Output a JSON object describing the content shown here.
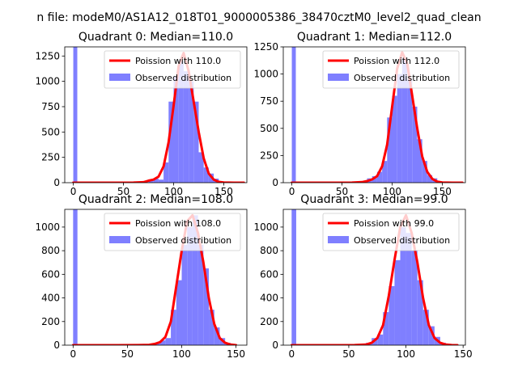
{
  "figure": {
    "suptitle": "n file: modeM0/AS1A12_018T01_9000005386_38470cztM0_level2_quad_clean"
  },
  "colors": {
    "hist": "#7f7fff",
    "poisson": "#ff0000",
    "axes": "#000000",
    "background": "#ffffff"
  },
  "chart_data": [
    {
      "type": "bar",
      "title": "Quadrant 0: Median=110.0",
      "legend_position": "upper-right",
      "xlim": [
        -8.5,
        173
      ],
      "ylim": [
        0,
        1340
      ],
      "xticks": [
        0,
        50,
        100,
        150
      ],
      "yticks": [
        0,
        250,
        500,
        750,
        1000,
        1250
      ],
      "series": [
        {
          "name": "Poission with 110.0",
          "kind": "line",
          "x": [
            0,
            40,
            60,
            70,
            75,
            80,
            85,
            90,
            95,
            100,
            105,
            110,
            115,
            120,
            125,
            130,
            135,
            140,
            145,
            150,
            160,
            170
          ],
          "y": [
            0,
            0,
            1,
            5,
            20,
            30,
            60,
            160,
            400,
            760,
            1150,
            1280,
            1100,
            800,
            500,
            240,
            90,
            30,
            8,
            2,
            0,
            0
          ]
        },
        {
          "name": "Observed distribution",
          "kind": "hist",
          "bins": [
            {
              "x0": 0,
              "x1": 4,
              "y": 1340
            },
            {
              "x0": 60,
              "x1": 65,
              "y": 2
            },
            {
              "x0": 70,
              "x1": 75,
              "y": 5
            },
            {
              "x0": 75,
              "x1": 80,
              "y": 30
            },
            {
              "x0": 80,
              "x1": 85,
              "y": 40
            },
            {
              "x0": 85,
              "x1": 90,
              "y": 30
            },
            {
              "x0": 90,
              "x1": 95,
              "y": 200
            },
            {
              "x0": 95,
              "x1": 100,
              "y": 800
            },
            {
              "x0": 100,
              "x1": 105,
              "y": 1050
            },
            {
              "x0": 105,
              "x1": 110,
              "y": 1200
            },
            {
              "x0": 110,
              "x1": 115,
              "y": 1100
            },
            {
              "x0": 115,
              "x1": 120,
              "y": 1000
            },
            {
              "x0": 120,
              "x1": 125,
              "y": 800
            },
            {
              "x0": 125,
              "x1": 130,
              "y": 300
            },
            {
              "x0": 130,
              "x1": 135,
              "y": 150
            },
            {
              "x0": 135,
              "x1": 140,
              "y": 90
            },
            {
              "x0": 140,
              "x1": 145,
              "y": 40
            },
            {
              "x0": 145,
              "x1": 150,
              "y": 10
            }
          ]
        }
      ]
    },
    {
      "type": "bar",
      "title": "Quadrant 1: Median=112.0",
      "legend_position": "upper-right",
      "xlim": [
        -8.5,
        173
      ],
      "ylim": [
        0,
        1250
      ],
      "xticks": [
        0,
        50,
        100,
        150
      ],
      "yticks": [
        0,
        250,
        500,
        750,
        1000,
        1250
      ],
      "series": [
        {
          "name": "Poission with 112.0",
          "kind": "line",
          "x": [
            0,
            40,
            60,
            70,
            75,
            80,
            85,
            90,
            95,
            100,
            105,
            110,
            115,
            120,
            125,
            130,
            135,
            140,
            145,
            150,
            160,
            170
          ],
          "y": [
            0,
            0,
            1,
            5,
            15,
            30,
            60,
            150,
            350,
            700,
            1050,
            1200,
            1100,
            800,
            500,
            240,
            100,
            35,
            10,
            2,
            0,
            0
          ]
        },
        {
          "name": "Observed distribution",
          "kind": "hist",
          "bins": [
            {
              "x0": 0,
              "x1": 4,
              "y": 1250
            },
            {
              "x0": 65,
              "x1": 70,
              "y": 5
            },
            {
              "x0": 70,
              "x1": 75,
              "y": 10
            },
            {
              "x0": 75,
              "x1": 80,
              "y": 40
            },
            {
              "x0": 80,
              "x1": 85,
              "y": 60
            },
            {
              "x0": 85,
              "x1": 90,
              "y": 100
            },
            {
              "x0": 90,
              "x1": 95,
              "y": 200
            },
            {
              "x0": 95,
              "x1": 100,
              "y": 600
            },
            {
              "x0": 100,
              "x1": 105,
              "y": 800
            },
            {
              "x0": 105,
              "x1": 110,
              "y": 1000
            },
            {
              "x0": 110,
              "x1": 115,
              "y": 1150
            },
            {
              "x0": 115,
              "x1": 120,
              "y": 950
            },
            {
              "x0": 120,
              "x1": 125,
              "y": 700
            },
            {
              "x0": 125,
              "x1": 130,
              "y": 400
            },
            {
              "x0": 130,
              "x1": 135,
              "y": 200
            },
            {
              "x0": 135,
              "x1": 140,
              "y": 70
            },
            {
              "x0": 140,
              "x1": 145,
              "y": 40
            },
            {
              "x0": 145,
              "x1": 150,
              "y": 10
            }
          ]
        }
      ]
    },
    {
      "type": "bar",
      "title": "Quadrant 2: Median=108.0",
      "legend_position": "upper-right",
      "xlim": [
        -7.7,
        160
      ],
      "ylim": [
        0,
        1150
      ],
      "xticks": [
        0,
        50,
        100,
        150
      ],
      "yticks": [
        0,
        200,
        400,
        600,
        800,
        1000
      ],
      "series": [
        {
          "name": "Poission with 108.0",
          "kind": "line",
          "x": [
            0,
            40,
            60,
            70,
            75,
            80,
            85,
            90,
            95,
            100,
            105,
            110,
            115,
            120,
            125,
            130,
            135,
            140,
            145,
            150
          ],
          "y": [
            0,
            0,
            1,
            3,
            10,
            25,
            70,
            200,
            500,
            800,
            1050,
            1100,
            950,
            700,
            400,
            180,
            60,
            20,
            5,
            0
          ]
        },
        {
          "name": "Observed distribution",
          "kind": "hist",
          "bins": [
            {
              "x0": 0,
              "x1": 4,
              "y": 1150
            },
            {
              "x0": 65,
              "x1": 70,
              "y": 5
            },
            {
              "x0": 70,
              "x1": 75,
              "y": 10
            },
            {
              "x0": 75,
              "x1": 80,
              "y": 15
            },
            {
              "x0": 80,
              "x1": 85,
              "y": 40
            },
            {
              "x0": 85,
              "x1": 90,
              "y": 60
            },
            {
              "x0": 90,
              "x1": 95,
              "y": 300
            },
            {
              "x0": 95,
              "x1": 100,
              "y": 550
            },
            {
              "x0": 100,
              "x1": 105,
              "y": 850
            },
            {
              "x0": 105,
              "x1": 110,
              "y": 1000
            },
            {
              "x0": 110,
              "x1": 115,
              "y": 1100
            },
            {
              "x0": 115,
              "x1": 120,
              "y": 850
            },
            {
              "x0": 120,
              "x1": 125,
              "y": 650
            },
            {
              "x0": 125,
              "x1": 130,
              "y": 300
            },
            {
              "x0": 130,
              "x1": 135,
              "y": 150
            },
            {
              "x0": 135,
              "x1": 140,
              "y": 60
            },
            {
              "x0": 140,
              "x1": 145,
              "y": 20
            },
            {
              "x0": 145,
              "x1": 150,
              "y": 10
            }
          ]
        }
      ]
    },
    {
      "type": "bar",
      "title": "Quadrant 3: Median=99.0",
      "legend_position": "upper-right",
      "xlim": [
        -7.3,
        152
      ],
      "ylim": [
        0,
        1150
      ],
      "xticks": [
        0,
        50,
        100,
        150
      ],
      "yticks": [
        0,
        200,
        400,
        600,
        800,
        1000
      ],
      "series": [
        {
          "name": "Poission with 99.0",
          "kind": "line",
          "x": [
            0,
            40,
            55,
            65,
            70,
            75,
            80,
            85,
            90,
            95,
            100,
            105,
            110,
            115,
            120,
            125,
            130,
            135,
            140,
            145
          ],
          "y": [
            0,
            0,
            1,
            5,
            20,
            60,
            170,
            420,
            720,
            1000,
            1100,
            950,
            700,
            400,
            170,
            60,
            20,
            5,
            1,
            0
          ]
        },
        {
          "name": "Observed distribution",
          "kind": "hist",
          "bins": [
            {
              "x0": 0,
              "x1": 4,
              "y": 1150
            },
            {
              "x0": 55,
              "x1": 60,
              "y": 5
            },
            {
              "x0": 60,
              "x1": 65,
              "y": 10
            },
            {
              "x0": 65,
              "x1": 70,
              "y": 20
            },
            {
              "x0": 70,
              "x1": 75,
              "y": 60
            },
            {
              "x0": 75,
              "x1": 80,
              "y": 90
            },
            {
              "x0": 80,
              "x1": 85,
              "y": 280
            },
            {
              "x0": 85,
              "x1": 90,
              "y": 500
            },
            {
              "x0": 90,
              "x1": 95,
              "y": 720
            },
            {
              "x0": 95,
              "x1": 100,
              "y": 1000
            },
            {
              "x0": 100,
              "x1": 105,
              "y": 950
            },
            {
              "x0": 105,
              "x1": 110,
              "y": 800
            },
            {
              "x0": 110,
              "x1": 115,
              "y": 550
            },
            {
              "x0": 115,
              "x1": 120,
              "y": 300
            },
            {
              "x0": 120,
              "x1": 125,
              "y": 160
            },
            {
              "x0": 125,
              "x1": 130,
              "y": 70
            },
            {
              "x0": 130,
              "x1": 135,
              "y": 20
            },
            {
              "x0": 135,
              "x1": 140,
              "y": 10
            }
          ]
        }
      ]
    }
  ]
}
